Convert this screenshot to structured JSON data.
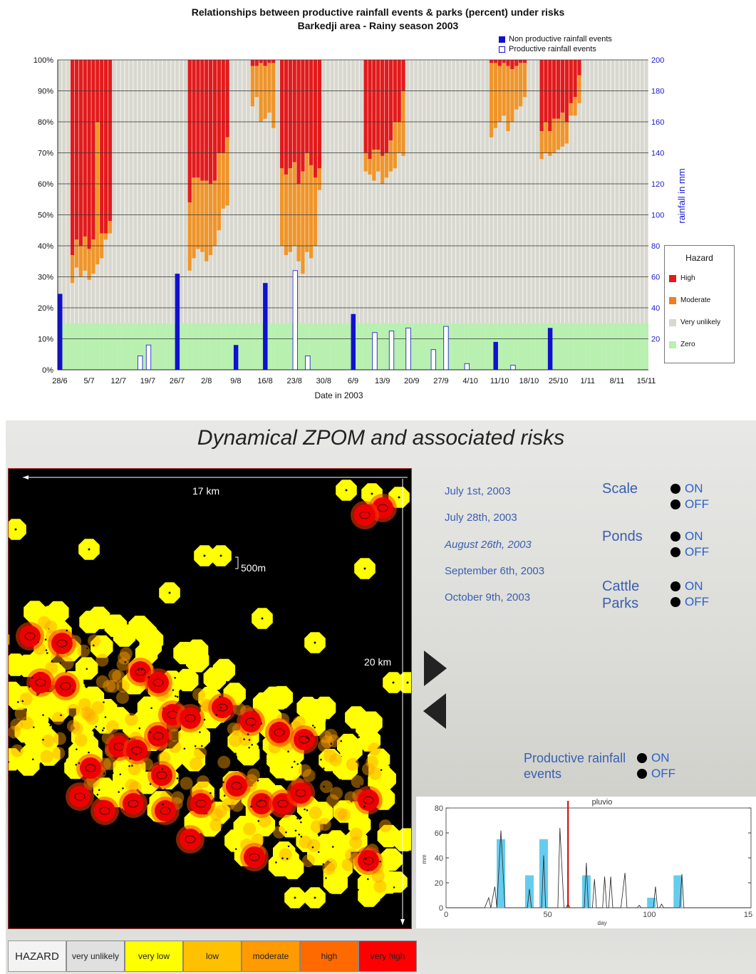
{
  "chart_data": [
    {
      "type": "bar",
      "title": "Relationships between productive rainfall events & parks (percent) under risks",
      "subtitle": "Barkedji area - Rainy season 2003",
      "xlabel": "Date in 2003",
      "ylabel": "",
      "y2label": "rainfall in mm",
      "ylim": [
        0,
        100
      ],
      "y2lim": [
        0,
        200
      ],
      "yticks": [
        "0%",
        "10%",
        "20%",
        "30%",
        "40%",
        "50%",
        "60%",
        "70%",
        "80%",
        "90%",
        "100%"
      ],
      "y2ticks": [
        "20",
        "40",
        "60",
        "80",
        "100",
        "120",
        "140",
        "160",
        "180",
        "200"
      ],
      "x_ticks": [
        "28/6",
        "5/7",
        "12/7",
        "19/7",
        "26/7",
        "2/8",
        "9/8",
        "16/8",
        "23/8",
        "30/8",
        "6/9",
        "13/9",
        "20/9",
        "27/9",
        "4/10",
        "11/10",
        "18/10",
        "25/10",
        "1/11",
        "8/11",
        "15/11"
      ],
      "grid": true,
      "day_count": 141,
      "rain_legend": [
        {
          "name": "Non productive rainfall events",
          "color": "#1010d0",
          "fill": true
        },
        {
          "name": "Productive rainfall events",
          "color": "#1010d0",
          "fill": false
        }
      ],
      "hazard_legend": {
        "title": "Hazard",
        "items": [
          {
            "name": "High",
            "color": "#e31a1c"
          },
          {
            "name": "Moderate",
            "color": "#f07d22"
          },
          {
            "name": "Very unlikely",
            "color": "#d8d8d0"
          },
          {
            "name": "Zero",
            "color": "#b8f0b0"
          }
        ]
      },
      "zero_level_percent": 15,
      "hazard_blocks": [
        {
          "start_day": 3,
          "end_day": 13,
          "high_bottom": [
            37,
            42,
            40,
            43,
            39,
            42,
            80,
            44,
            44,
            48
          ],
          "moderate_bottom": [
            28,
            33,
            30,
            32,
            29,
            31,
            34,
            36,
            42,
            44
          ]
        },
        {
          "start_day": 31,
          "end_day": 41,
          "high_bottom": [
            54,
            62,
            62,
            61,
            61,
            60,
            61,
            70,
            70,
            75
          ],
          "moderate_bottom": [
            32,
            36,
            39,
            38,
            35,
            37,
            40,
            45,
            52,
            53
          ]
        },
        {
          "start_day": 46,
          "end_day": 52,
          "high_bottom": [
            98,
            98,
            99,
            98,
            99,
            99
          ],
          "moderate_bottom": [
            85,
            88,
            80,
            81,
            83,
            78
          ]
        },
        {
          "start_day": 53,
          "end_day": 63,
          "high_bottom": [
            65,
            63,
            65,
            67,
            60,
            64,
            70,
            66,
            62,
            65
          ],
          "moderate_bottom": [
            40,
            37,
            38,
            40,
            35,
            31,
            38,
            36,
            40,
            58
          ]
        },
        {
          "start_day": 73,
          "end_day": 83,
          "high_bottom": [
            70,
            68,
            71,
            71,
            69,
            70,
            74,
            80,
            80,
            90
          ],
          "moderate_bottom": [
            64,
            63,
            61,
            64,
            60,
            62,
            64,
            65,
            70,
            69
          ]
        },
        {
          "start_day": 103,
          "end_day": 112,
          "high_bottom": [
            99,
            99,
            98,
            99,
            98,
            97,
            98,
            99,
            99
          ],
          "moderate_bottom": [
            75,
            78,
            80,
            82,
            77,
            80,
            84,
            85,
            88
          ]
        },
        {
          "start_day": 115,
          "end_day": 125,
          "high_bottom": [
            77,
            80,
            77,
            81,
            81,
            83,
            80,
            86,
            88,
            95
          ],
          "moderate_bottom": [
            68,
            70,
            69,
            70,
            71,
            72,
            73,
            82,
            82,
            86
          ]
        }
      ],
      "rain_events": [
        {
          "day": 0,
          "mm": 49,
          "productive": false
        },
        {
          "day": 19,
          "mm": 9,
          "productive": true
        },
        {
          "day": 21,
          "mm": 16,
          "productive": true
        },
        {
          "day": 28,
          "mm": 62,
          "productive": false
        },
        {
          "day": 42,
          "mm": 16,
          "productive": false
        },
        {
          "day": 49,
          "mm": 56,
          "productive": false
        },
        {
          "day": 56,
          "mm": 64,
          "productive": true
        },
        {
          "day": 59,
          "mm": 9,
          "productive": true
        },
        {
          "day": 70,
          "mm": 36,
          "productive": false
        },
        {
          "day": 75,
          "mm": 24,
          "productive": true
        },
        {
          "day": 79,
          "mm": 25,
          "productive": true
        },
        {
          "day": 83,
          "mm": 27,
          "productive": true
        },
        {
          "day": 89,
          "mm": 13,
          "productive": true
        },
        {
          "day": 92,
          "mm": 28,
          "productive": true
        },
        {
          "day": 97,
          "mm": 4,
          "productive": true
        },
        {
          "day": 104,
          "mm": 18,
          "productive": false
        },
        {
          "day": 108,
          "mm": 3,
          "productive": true
        },
        {
          "day": 117,
          "mm": 27,
          "productive": false
        }
      ]
    },
    {
      "type": "line",
      "title": "pluvio",
      "xlabel": "day",
      "ylabel": "mm",
      "xlim": [
        0,
        150
      ],
      "ylim": [
        0,
        80
      ],
      "xticks": [
        "0",
        "50",
        "100",
        "15"
      ],
      "yticks": [
        "0",
        "20",
        "40",
        "60",
        "80"
      ],
      "marker_day": 60,
      "productive_bars": [
        {
          "day": 27,
          "mm": 55
        },
        {
          "day": 41,
          "mm": 26
        },
        {
          "day": 48,
          "mm": 55
        },
        {
          "day": 69,
          "mm": 26
        },
        {
          "day": 101,
          "mm": 8
        },
        {
          "day": 114,
          "mm": 26
        }
      ],
      "rain_series": [
        [
          0,
          0
        ],
        [
          19,
          0
        ],
        [
          21,
          8
        ],
        [
          22,
          0
        ],
        [
          22,
          0
        ],
        [
          24,
          17
        ],
        [
          25,
          0
        ],
        [
          25,
          0
        ],
        [
          27,
          62
        ],
        [
          29,
          0
        ],
        [
          40,
          0
        ],
        [
          41,
          15
        ],
        [
          42,
          0
        ],
        [
          47,
          0
        ],
        [
          48,
          42
        ],
        [
          49,
          0
        ],
        [
          55,
          0
        ],
        [
          56,
          64
        ],
        [
          58,
          0
        ],
        [
          59,
          0
        ],
        [
          60,
          3
        ],
        [
          61,
          0
        ],
        [
          68,
          0
        ],
        [
          69,
          36
        ],
        [
          70,
          0
        ],
        [
          72,
          0
        ],
        [
          73,
          23
        ],
        [
          74,
          0
        ],
        [
          77,
          0
        ],
        [
          78,
          25
        ],
        [
          79,
          0
        ],
        [
          80,
          0
        ],
        [
          81,
          25
        ],
        [
          82,
          0
        ],
        [
          86,
          0
        ],
        [
          88,
          28
        ],
        [
          89,
          0
        ],
        [
          94,
          0
        ],
        [
          95,
          2
        ],
        [
          96,
          0
        ],
        [
          102,
          0
        ],
        [
          103,
          17
        ],
        [
          104,
          0
        ],
        [
          105,
          0
        ],
        [
          106,
          3
        ],
        [
          107,
          0
        ],
        [
          115,
          0
        ],
        [
          116,
          27
        ],
        [
          117,
          0
        ],
        [
          150,
          0
        ]
      ]
    }
  ],
  "panel": {
    "title": "Dynamical ZPOM and associated risks",
    "map_labels": {
      "width": "17 km",
      "height": "20 km",
      "scale": "500m"
    },
    "dates": [
      "July 1st, 2003",
      "July 28th, 2003",
      "August 26th, 2003",
      "September 6th, 2003",
      "October 9th, 2003"
    ],
    "controls": [
      {
        "label": "Scale",
        "on": "ON",
        "off": "OFF"
      },
      {
        "label": "Ponds",
        "on": "ON",
        "off": "OFF"
      },
      {
        "label": "Cattle Parks",
        "on": "ON",
        "off": "OFF"
      }
    ],
    "productive_rainfall": {
      "label": "Productive rainfall events",
      "on": "ON",
      "off": "OFF"
    },
    "hazard_bar": {
      "title": "HAZARD",
      "items": [
        {
          "label": "very unlikely",
          "color": "#e0e0e0"
        },
        {
          "label": "very low",
          "color": "#ffff00"
        },
        {
          "label": "low",
          "color": "#ffc000"
        },
        {
          "label": "moderate",
          "color": "#ff9a00"
        },
        {
          "label": "high",
          "color": "#ff6a00"
        },
        {
          "label": "very high",
          "color": "#ff0000"
        }
      ]
    }
  }
}
